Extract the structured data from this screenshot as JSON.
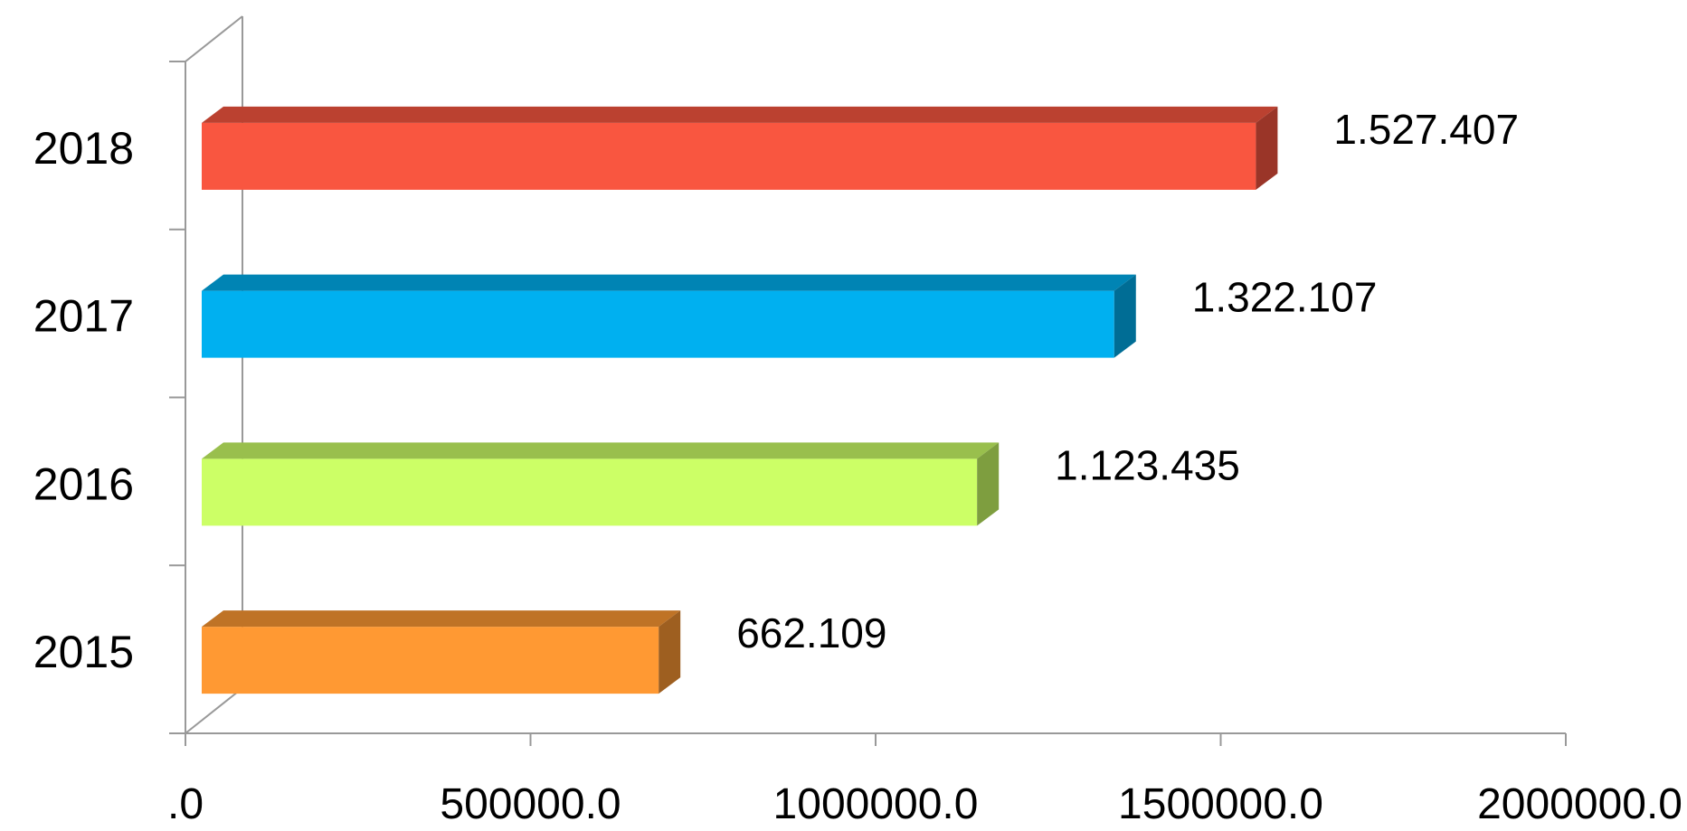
{
  "chart_data": {
    "type": "bar",
    "orientation": "horizontal",
    "style": "3d",
    "categories": [
      "2015",
      "2016",
      "2017",
      "2018"
    ],
    "values": [
      662109,
      1123435,
      1322107,
      1527407
    ],
    "data_labels": [
      "662.109",
      "1.123.435",
      "1.322.107",
      "1.527.407"
    ],
    "xlim": [
      0,
      2000000
    ],
    "x_ticks": [
      0,
      500000,
      1000000,
      1500000,
      2000000
    ],
    "x_tick_labels": [
      ".0",
      "500000.0",
      "1000000.0",
      "1500000.0",
      "2000000.0"
    ],
    "bar_colors": [
      "#FF9933",
      "#CCFF66",
      "#00B0F0",
      "#F95640"
    ],
    "grid": false,
    "legend": "none",
    "title": "",
    "xlabel": "",
    "ylabel": ""
  }
}
